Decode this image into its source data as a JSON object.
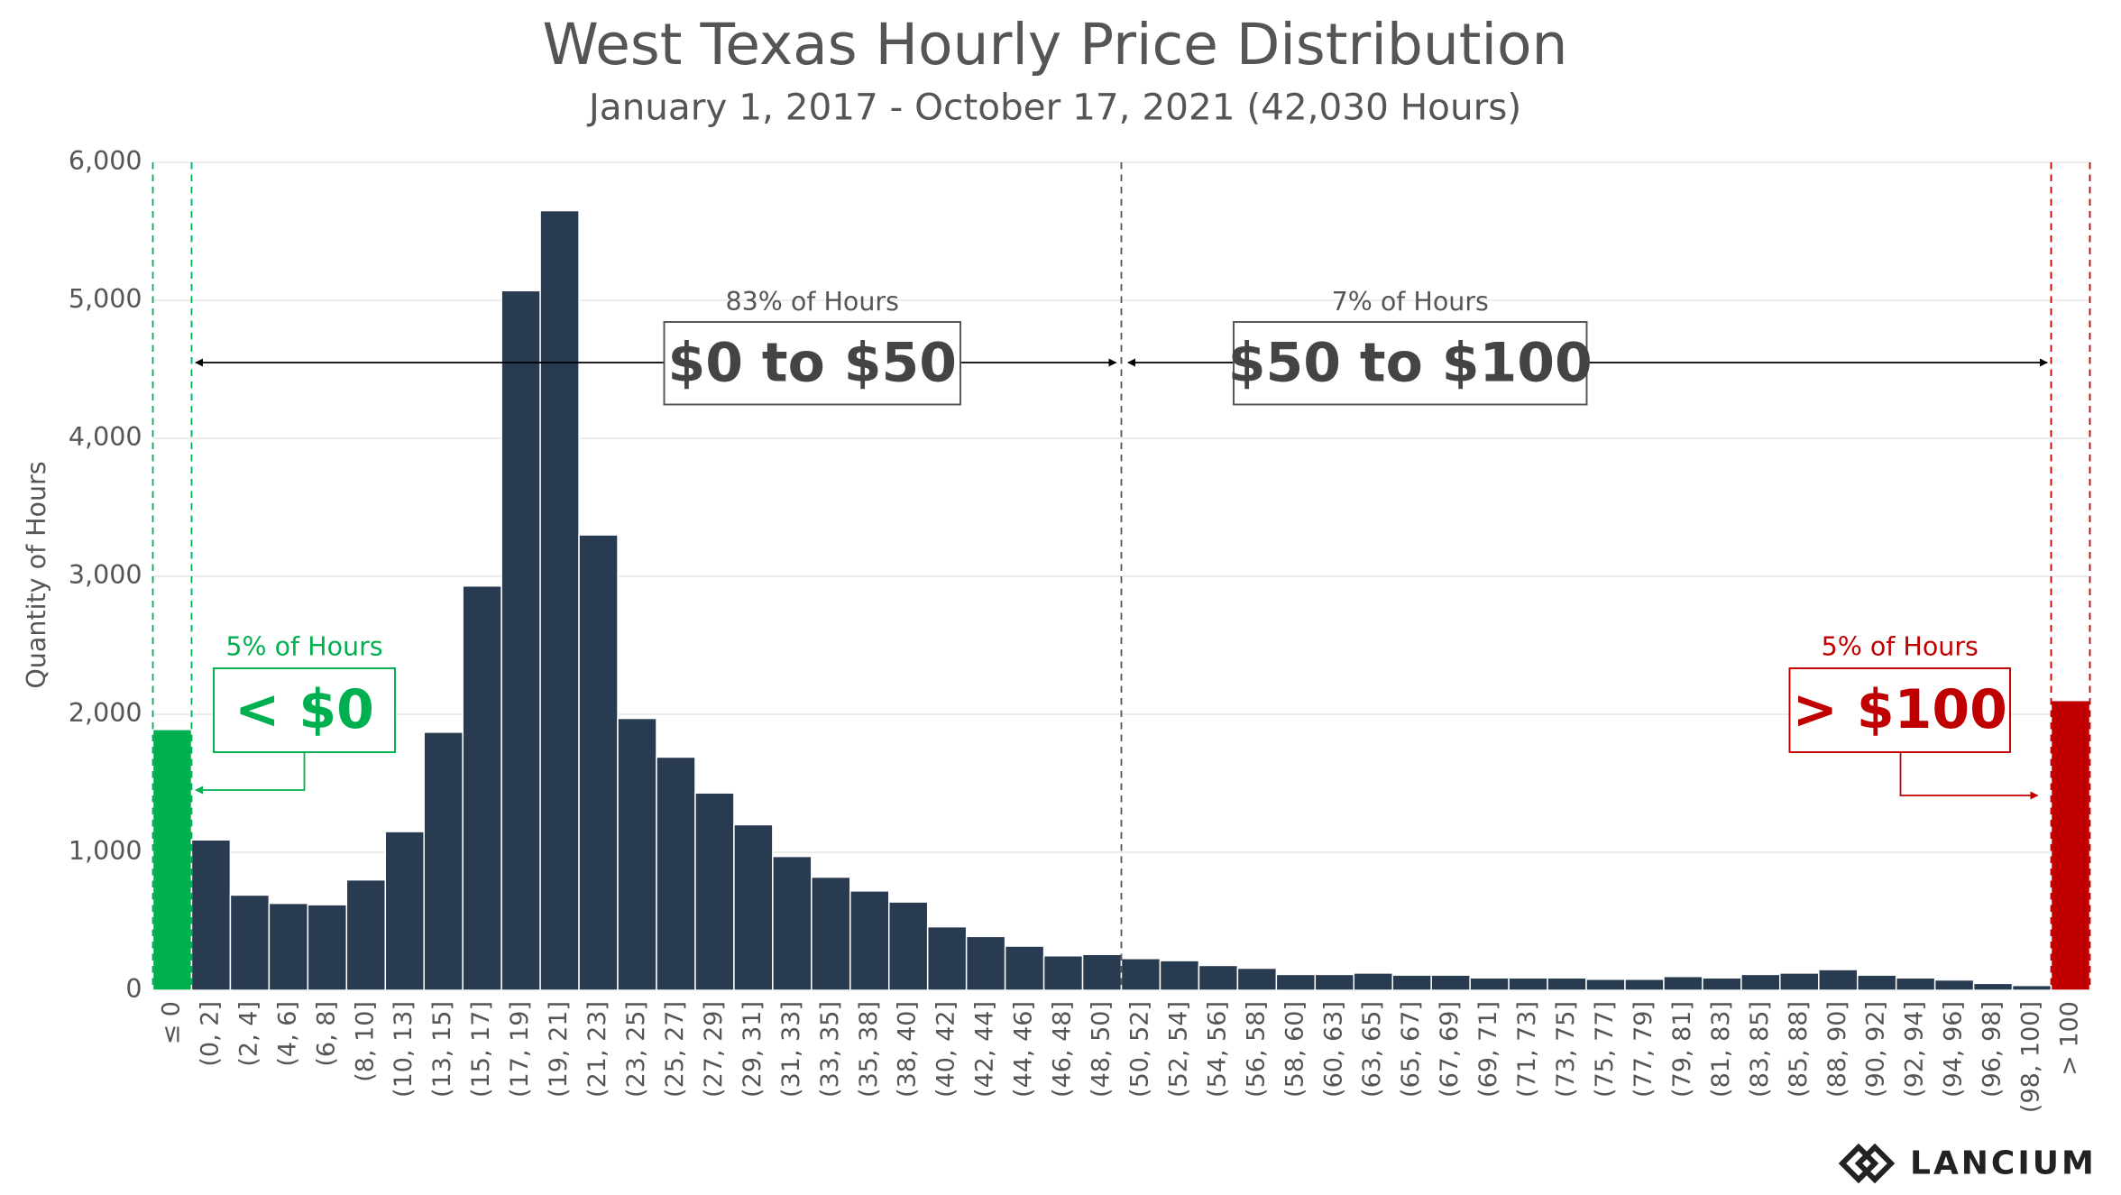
{
  "chart_data": {
    "type": "bar",
    "title": "West Texas Hourly Price Distribution",
    "subtitle": "January 1, 2017 - October 17, 2021 (42,030 Hours)",
    "y_label": "Quantity of Hours",
    "categories": [
      "≤ 0",
      "(0, 2]",
      "(2, 4]",
      "(4, 6]",
      "(6, 8]",
      "(8, 10]",
      "(10, 13]",
      "(13, 15]",
      "(15, 17]",
      "(17, 19]",
      "(19, 21]",
      "(21, 23]",
      "(23, 25]",
      "(25, 27]",
      "(27, 29]",
      "(29, 31]",
      "(31, 33]",
      "(33, 35]",
      "(35, 38]",
      "(38, 40]",
      "(40, 42]",
      "(42, 44]",
      "(44, 46]",
      "(46, 48]",
      "(48, 50]",
      "(50, 52]",
      "(52, 54]",
      "(54, 56]",
      "(56, 58]",
      "(58, 60]",
      "(60, 63]",
      "(63, 65]",
      "(65, 67]",
      "(67, 69]",
      "(69, 71]",
      "(71, 73]",
      "(73, 75]",
      "(75, 77]",
      "(77, 79]",
      "(79, 81]",
      "(81, 83]",
      "(83, 85]",
      "(85, 88]",
      "(88, 90]",
      "(90, 92]",
      "(92, 94]",
      "(94, 96]",
      "(96, 98]",
      "(98, 100]",
      "> 100"
    ],
    "values": [
      1890,
      1090,
      690,
      630,
      620,
      800,
      1150,
      1870,
      2930,
      5070,
      5650,
      3300,
      1970,
      1690,
      1430,
      1200,
      970,
      820,
      720,
      640,
      460,
      390,
      320,
      250,
      260,
      230,
      215,
      180,
      160,
      115,
      115,
      125,
      110,
      110,
      90,
      90,
      90,
      80,
      80,
      100,
      90,
      115,
      125,
      150,
      110,
      90,
      75,
      50,
      35,
      2100
    ],
    "colors": [
      "#00b050",
      "#293b51",
      "#293b51",
      "#293b51",
      "#293b51",
      "#293b51",
      "#293b51",
      "#293b51",
      "#293b51",
      "#293b51",
      "#293b51",
      "#293b51",
      "#293b51",
      "#293b51",
      "#293b51",
      "#293b51",
      "#293b51",
      "#293b51",
      "#293b51",
      "#293b51",
      "#293b51",
      "#293b51",
      "#293b51",
      "#293b51",
      "#293b51",
      "#293b51",
      "#293b51",
      "#293b51",
      "#293b51",
      "#293b51",
      "#293b51",
      "#293b51",
      "#293b51",
      "#293b51",
      "#293b51",
      "#293b51",
      "#293b51",
      "#293b51",
      "#293b51",
      "#293b51",
      "#293b51",
      "#293b51",
      "#293b51",
      "#293b51",
      "#293b51",
      "#293b51",
      "#293b51",
      "#293b51",
      "#293b51",
      "#c00000"
    ],
    "ylim": [
      0,
      6000
    ],
    "yticks": [
      0,
      {
        "value": 1000,
        "label": "1,000"
      },
      {
        "value": 2000,
        "label": "2,000"
      },
      {
        "value": 3000,
        "label": "3,000"
      },
      {
        "value": 4000,
        "label": "4,000"
      },
      {
        "value": 5000,
        "label": "5,000"
      },
      {
        "value": 6000,
        "label": "6,000"
      }
    ],
    "grid": true,
    "annotations": [
      {
        "note": "83% of Hours",
        "label": "$0 to $50",
        "color": "#555555"
      },
      {
        "note": "7% of Hours",
        "label": "$50 to $100",
        "color": "#555555"
      },
      {
        "note": "5% of Hours",
        "label": "< $0",
        "color": "#00b050"
      },
      {
        "note": "5% of Hours",
        "label": "> $100",
        "color": "#c00000"
      }
    ]
  },
  "logo": "LANCIUM"
}
